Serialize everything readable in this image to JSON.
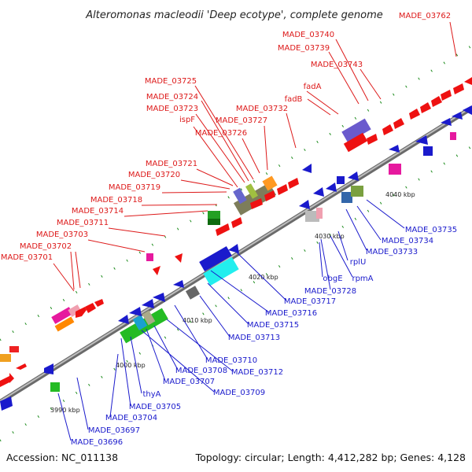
{
  "title": "Alteromonas macleodii 'Deep ecotype', complete genome",
  "accession": "Accession: NC_011138",
  "topology": "Topology: circular; Length: 4,412,282 bp; Genes: 4,128",
  "colors": {
    "forward_label": "#dd1a1a",
    "reverse_label": "#1a1acc",
    "backbone": "#8c8c8c",
    "tick": "#1a8a1a"
  },
  "kbp_ticks": [
    "3990 kbp",
    "4000 kbp",
    "4010 kbp",
    "4020 kbp",
    "4030 kbp",
    "4040 kbp"
  ],
  "forward_labels": [
    "MADE_03762",
    "MADE_03740",
    "MADE_03739",
    "MADE_03743",
    "fadA",
    "fadB",
    "MADE_03732",
    "MADE_03725",
    "MADE_03724",
    "MADE_03723",
    "ispF",
    "MADE_03727",
    "MADE_03726",
    "MADE_03721",
    "MADE_03720",
    "MADE_03719",
    "MADE_03718",
    "MADE_03714",
    "MADE_03711",
    "MADE_03703",
    "MADE_03702",
    "MADE_03701"
  ],
  "reverse_labels": [
    "MADE_03735",
    "MADE_03734",
    "MADE_03733",
    "rplU",
    "rpmA",
    "MADE_03728",
    "obgE",
    "MADE_03717",
    "MADE_03716",
    "MADE_03715",
    "MADE_03713",
    "MADE_03710",
    "MADE_03712",
    "MADE_03708",
    "MADE_03707",
    "MADE_03709",
    "thyA",
    "MADE_03705",
    "MADE_03704",
    "MADE_03697",
    "MADE_03696"
  ]
}
